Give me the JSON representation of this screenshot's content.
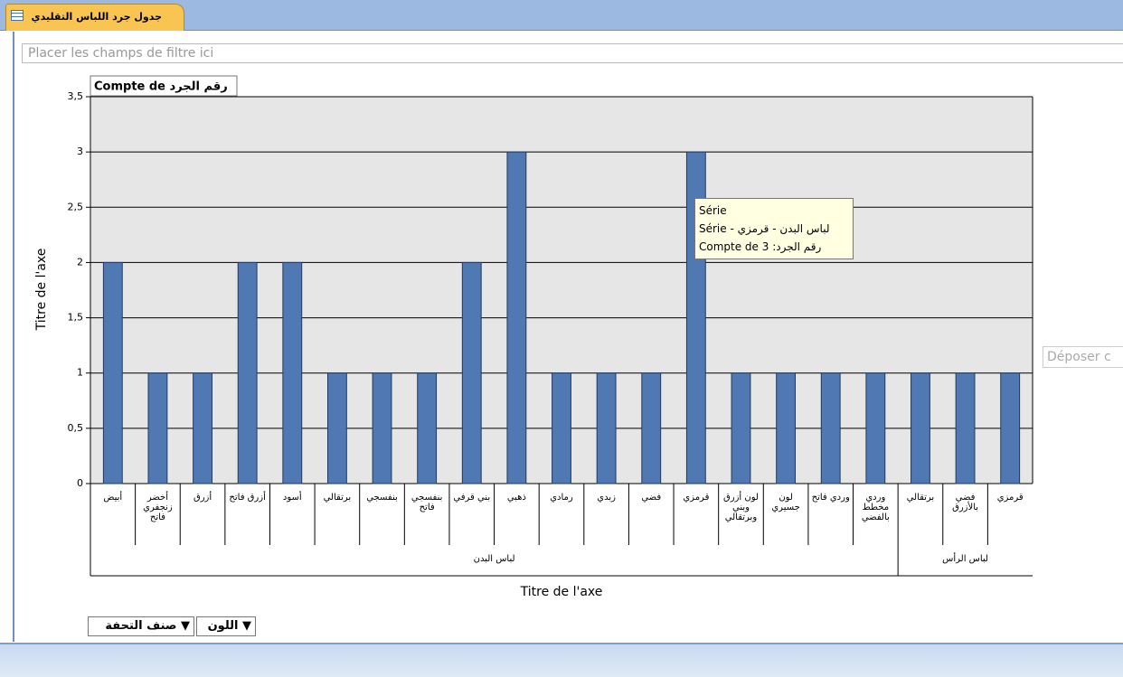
{
  "tab": {
    "title": "جدول جرد اللباس التقليدي"
  },
  "filter_zone": "Placer les champs de filtre ici",
  "drop_zone": "Déposer c",
  "field_buttons": [
    "صنف التحفة",
    "اللون"
  ],
  "tooltip": {
    "lines": [
      "Série",
      "لباس البدن - قرمزي - Série",
      "Compte de رقم الجرد: 3"
    ]
  },
  "chart_data": {
    "type": "bar",
    "title": "Compte de رقم الجرد",
    "y_label": "Titre de l'axe",
    "x_label": "Titre de l'axe",
    "color": "#5079b3",
    "ylim": [
      0,
      3.5
    ],
    "yticks": [
      0,
      {
        "value": 0.5,
        "label": "0,5"
      },
      1,
      {
        "value": 1.5,
        "label": "1,5"
      },
      2,
      {
        "value": 2.5,
        "label": "2,5"
      },
      3,
      {
        "value": 3.5,
        "label": "3,5"
      }
    ],
    "grid": true,
    "groups": [
      {
        "name": "لباس البدن",
        "categories": [
          "أبيض",
          "أخضر زنجفري فاتح",
          "أزرق",
          "أزرق فاتح",
          "أسود",
          "برتقالي",
          "بنفسجي",
          "بنفسجي فاتح",
          "بني قرفي",
          "ذهبي",
          "رمادي",
          "زبدي",
          "فضي",
          "قرمزي",
          "لون أزرق وبني وبرتقالي",
          "لون جسيري",
          "وردي فاتح",
          "وردي مخطط بالفضي"
        ],
        "values": [
          2,
          1,
          1,
          2,
          2,
          1,
          1,
          1,
          2,
          3,
          1,
          1,
          1,
          3,
          1,
          1,
          1,
          1
        ]
      },
      {
        "name": "لباس الرأس",
        "categories": [
          "برتقالي",
          "فضي بالأزرق",
          "قرمزي"
        ],
        "values": [
          1,
          1,
          1
        ]
      }
    ]
  }
}
